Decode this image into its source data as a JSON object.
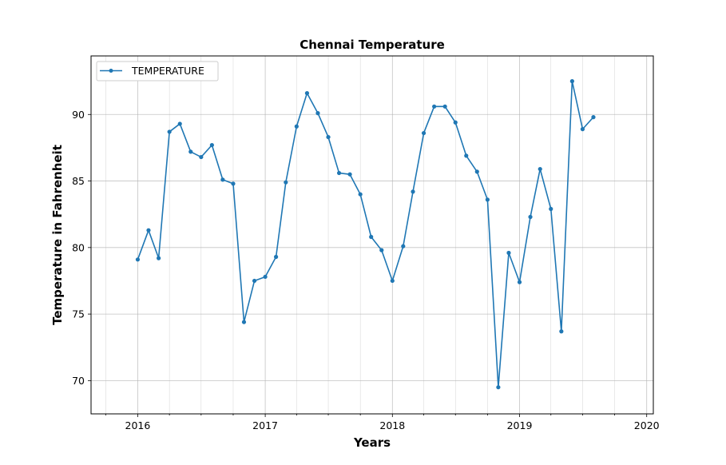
{
  "chart_data": {
    "type": "line",
    "title": "Chennai Temperature",
    "xlabel": "Years",
    "ylabel": "Temperature in Fahrenheit",
    "x_ticks": [
      "2016",
      "2017",
      "2018",
      "2019",
      "2020"
    ],
    "y_ticks": [
      70,
      75,
      80,
      85,
      90
    ],
    "xlim": [
      "2015-08-20",
      "2020-01-20"
    ],
    "ylim": [
      67.5,
      94.4
    ],
    "grid": true,
    "legend_position": "top-left",
    "series": [
      {
        "name": "TEMPERATURE",
        "color": "#1f77b4",
        "x": [
          "2016-01",
          "2016-02",
          "2016-03",
          "2016-04",
          "2016-05",
          "2016-06",
          "2016-07",
          "2016-08",
          "2016-09",
          "2016-10",
          "2016-11",
          "2016-12",
          "2017-01",
          "2017-02",
          "2017-03",
          "2017-04",
          "2017-05",
          "2017-06",
          "2017-07",
          "2017-08",
          "2017-09",
          "2017-10",
          "2017-11",
          "2017-12",
          "2018-01",
          "2018-02",
          "2018-03",
          "2018-04",
          "2018-05",
          "2018-06",
          "2018-07",
          "2018-08",
          "2018-09",
          "2018-10",
          "2018-11",
          "2018-12",
          "2019-01",
          "2019-02",
          "2019-03",
          "2019-04",
          "2019-05",
          "2019-06",
          "2019-07",
          "2019-08"
        ],
        "values": [
          79.1,
          81.3,
          79.2,
          88.7,
          89.3,
          87.2,
          86.8,
          87.7,
          85.1,
          84.8,
          74.4,
          77.5,
          77.8,
          79.3,
          84.9,
          89.1,
          91.6,
          90.1,
          88.3,
          85.6,
          85.5,
          84.0,
          80.8,
          79.8,
          77.5,
          80.1,
          84.2,
          88.6,
          90.6,
          90.6,
          89.4,
          86.9,
          85.7,
          83.6,
          69.5,
          79.6,
          77.4,
          82.3,
          85.9,
          82.9,
          73.7,
          92.5,
          88.9,
          89.8
        ]
      }
    ]
  }
}
